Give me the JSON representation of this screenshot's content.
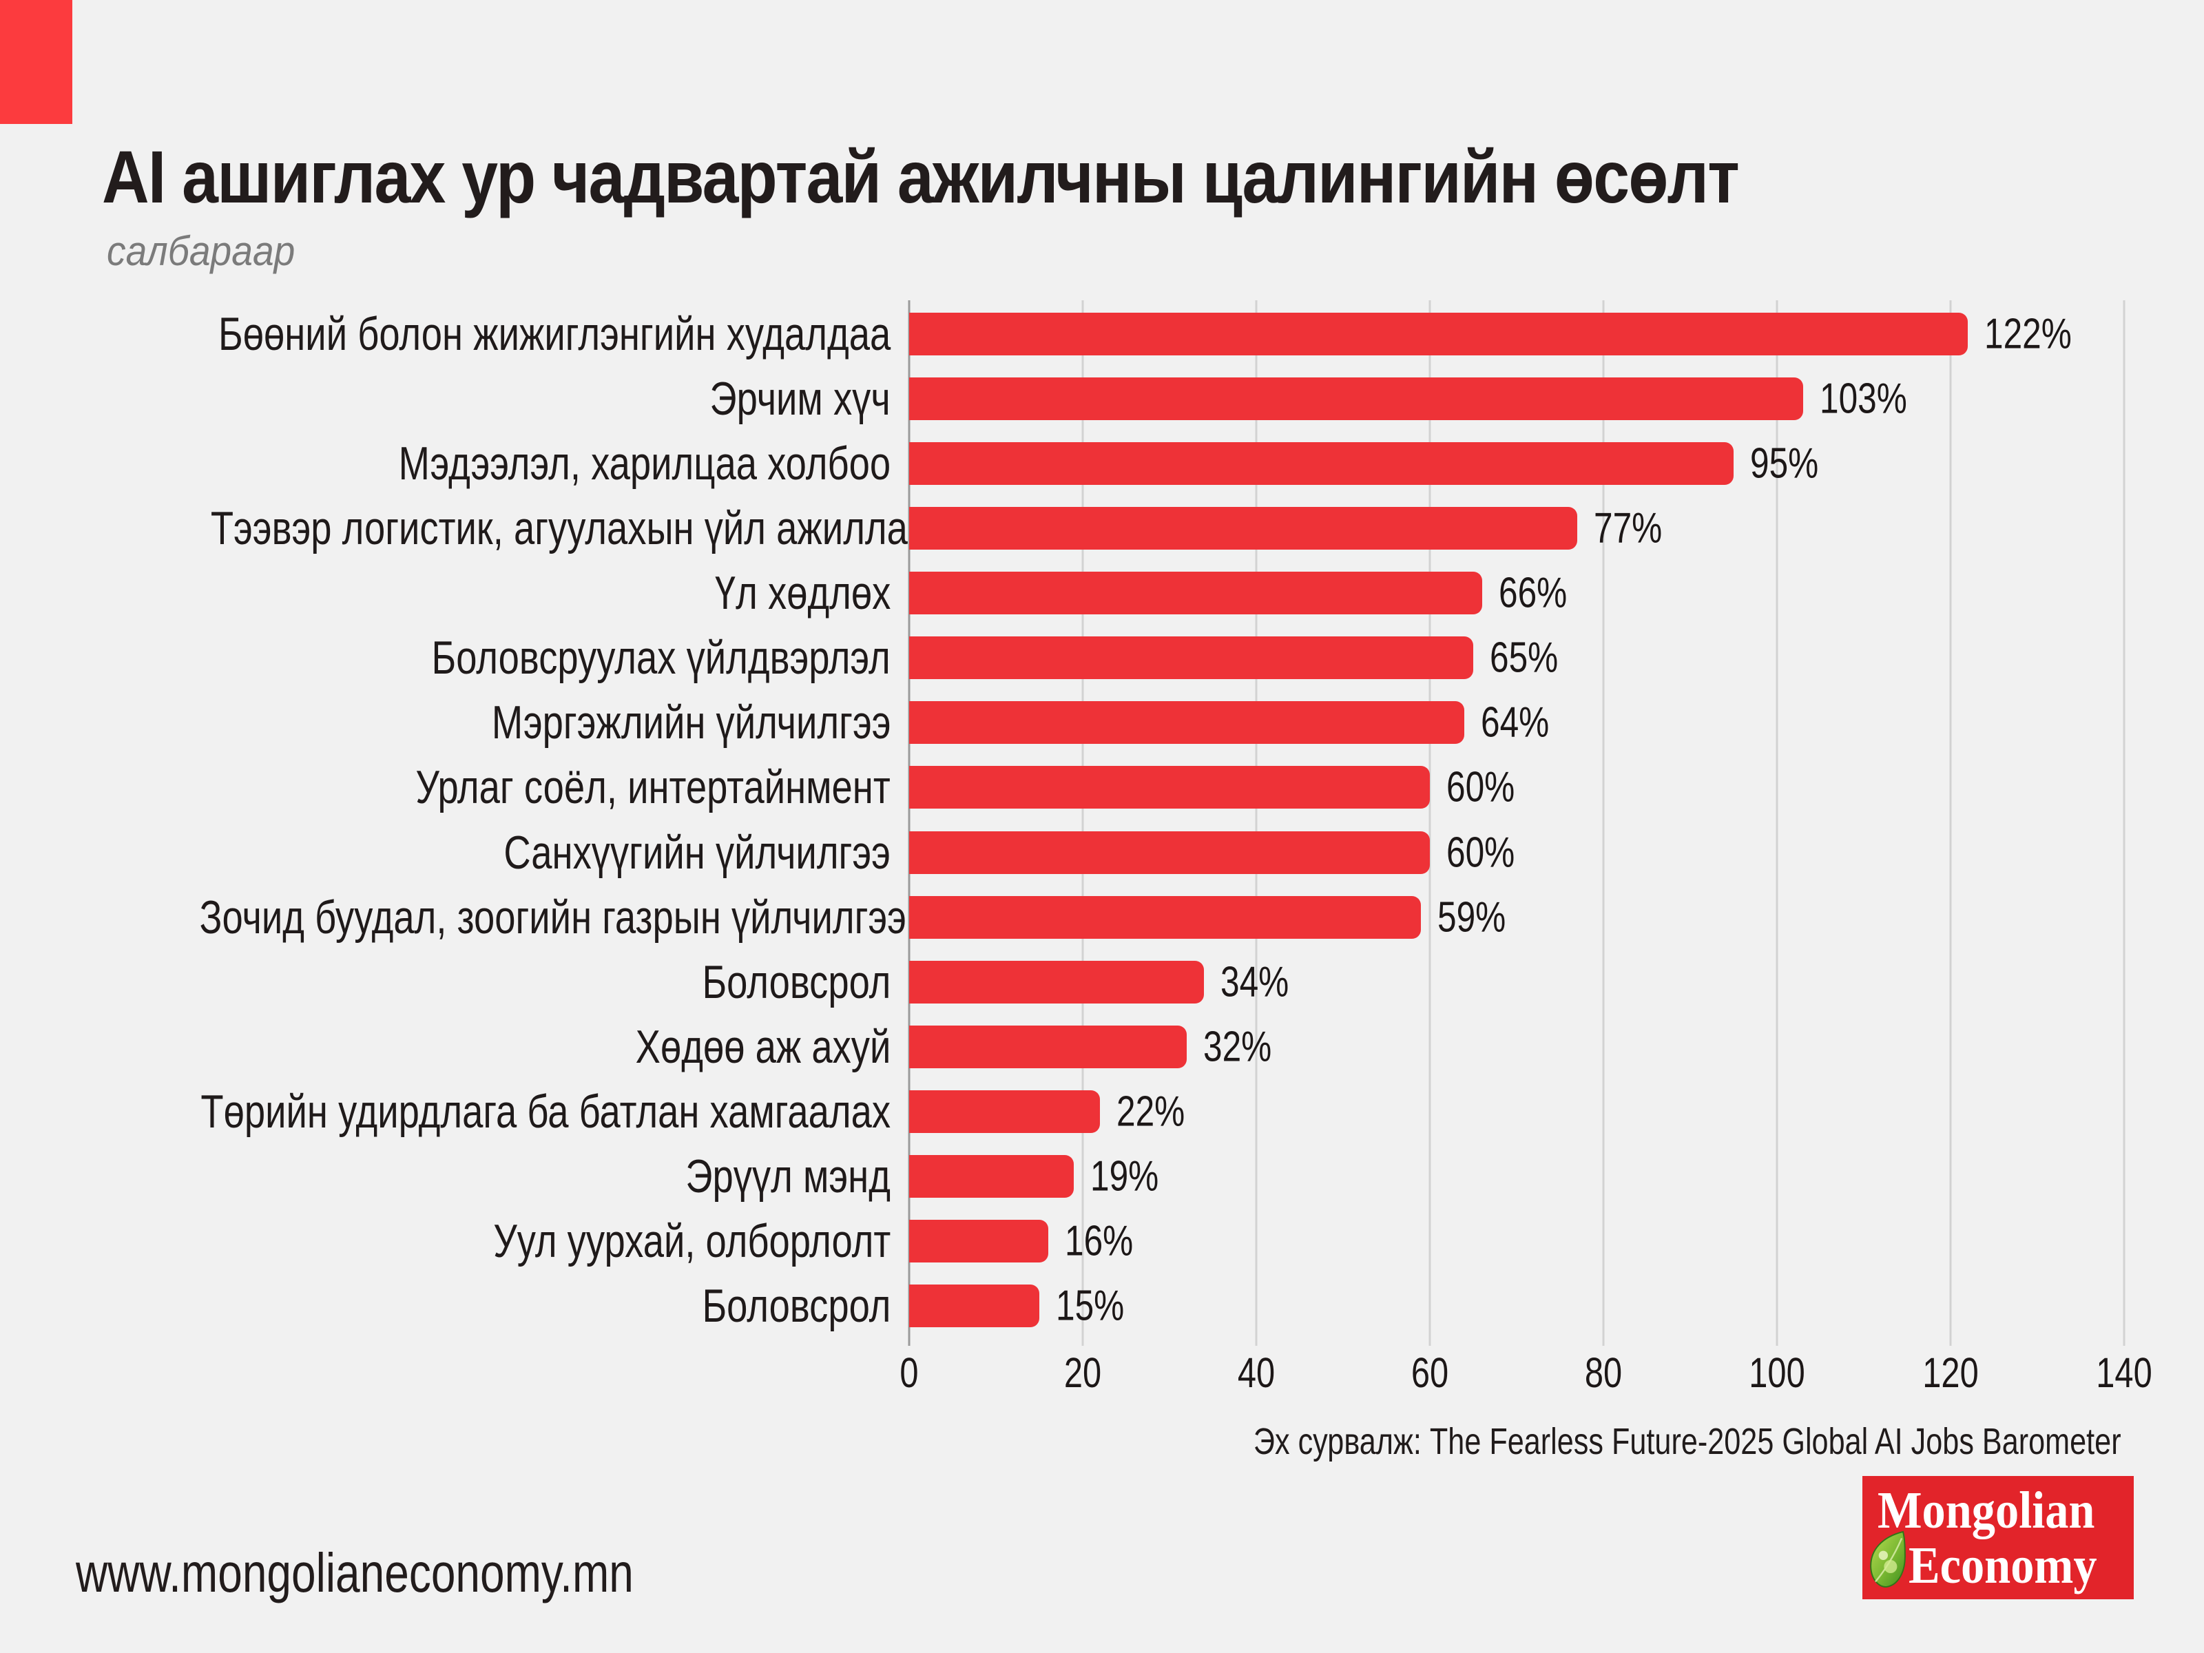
{
  "header": {
    "title": "AI ашиглах ур чадвартай ажилчны цалингийн өсөлт",
    "subtitle": "салбараар"
  },
  "chart_data": {
    "type": "bar",
    "orientation": "horizontal",
    "title": "AI ашиглах ур чадвартай ажилчны цалингийн өсөлт",
    "subtitle": "салбараар",
    "categories": [
      "Бөөний болон жижиглэнгийн худалдаа",
      "Эрчим хүч",
      "Мэдээлэл, харилцаа холбоо",
      "Тээвэр логистик, агуулахын үйл ажиллагаа",
      "Үл хөдлөх",
      "Боловсруулах үйлдвэрлэл",
      "Мэргэжлийн үйлчилгээ",
      "Урлаг соёл, интертайнмент",
      "Санхүүгийн үйлчилгээ",
      "Зочид буудал, зоогийн газрын үйлчилгээ",
      "Боловсрол",
      "Хөдөө аж ахуй",
      "Төрийн удирдлага ба батлан хамгаалах",
      "Эрүүл мэнд",
      "Уул уурхай, олборлолт",
      "Боловсрол"
    ],
    "values": [
      122,
      103,
      95,
      77,
      66,
      65,
      64,
      60,
      60,
      59,
      34,
      32,
      22,
      19,
      16,
      15
    ],
    "value_labels": [
      "122%",
      "103%",
      "95%",
      "77%",
      "66%",
      "65%",
      "64%",
      "60%",
      "60%",
      "59%",
      "34%",
      "32%",
      "22%",
      "19%",
      "16%",
      "15%"
    ],
    "value_suffix": "%",
    "xlabel": "",
    "ylabel": "",
    "xlim": [
      0,
      140
    ],
    "x_ticks": [
      0,
      20,
      40,
      60,
      80,
      100,
      120,
      140
    ],
    "grid": "vertical",
    "legend": "none"
  },
  "source": {
    "text": "Эх сурвалж: The Fearless Future-2025 Global AI Jobs Barometer"
  },
  "logo": {
    "line1": "Mongolian",
    "line2": "Economy",
    "leaf_icon": "green-leaf"
  },
  "footer": {
    "url": "www.mongolianeconomy.mn"
  },
  "colors": {
    "background": "#f1f1f1",
    "bar": "#ee3237",
    "accent_block": "#fc3b3e",
    "logo_box": "#e2242a",
    "title_text": "#221c1c",
    "subtitle_text": "#7b7b7b",
    "gridline": "#d2d2d2",
    "axis_line": "#9a9a9a",
    "body_text": "#1c1717"
  }
}
